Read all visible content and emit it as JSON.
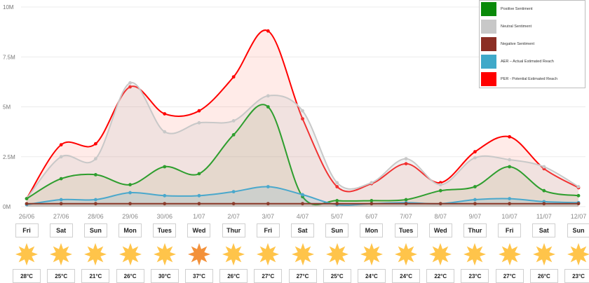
{
  "chart_data": {
    "type": "area",
    "categories": [
      "26/06",
      "27/06",
      "28/06",
      "29/06",
      "30/06",
      "1/07",
      "2/07",
      "3/07",
      "4/07",
      "5/07",
      "6/07",
      "7/07",
      "8/07",
      "9/07",
      "10/07",
      "11/07",
      "12/07"
    ],
    "y_ticks": [
      "0M",
      "2.5M",
      "5M",
      "7.5M",
      "10M"
    ],
    "ylim": [
      0,
      10
    ],
    "legend_position": "top-right",
    "series": [
      {
        "name": "Positive Sentiment",
        "color": "#2e9e2e",
        "values": [
          0.4,
          1.4,
          1.6,
          1.1,
          2.0,
          1.65,
          3.6,
          5.0,
          0.5,
          0.3,
          0.3,
          0.35,
          0.8,
          1.0,
          2.0,
          0.8,
          0.55
        ]
      },
      {
        "name": "Neutral Sentiment",
        "color": "#c8c8c8",
        "values": [
          0.4,
          2.5,
          2.4,
          6.2,
          3.75,
          4.2,
          4.3,
          5.55,
          4.8,
          1.2,
          1.2,
          2.4,
          1.1,
          2.45,
          2.35,
          2.0,
          1.0
        ]
      },
      {
        "name": "Negative Sentiment",
        "color": "#8b3a2a",
        "values": [
          0.15,
          0.15,
          0.15,
          0.15,
          0.15,
          0.15,
          0.15,
          0.15,
          0.15,
          0.15,
          0.15,
          0.15,
          0.15,
          0.15,
          0.15,
          0.15,
          0.15
        ]
      },
      {
        "name": "AER – Actual Estimated Reach",
        "color": "#4aa8cc",
        "values": [
          0.1,
          0.35,
          0.35,
          0.7,
          0.55,
          0.55,
          0.75,
          1.0,
          0.6,
          0.1,
          0.15,
          0.2,
          0.15,
          0.35,
          0.4,
          0.25,
          0.2
        ]
      },
      {
        "name": "PER - Potential Estimated Reach",
        "color": "#ff0000",
        "values": [
          0.4,
          3.1,
          3.15,
          6.0,
          4.65,
          4.8,
          6.5,
          8.8,
          4.4,
          1.0,
          1.15,
          2.15,
          1.2,
          2.75,
          3.5,
          1.9,
          0.95
        ]
      }
    ]
  },
  "forecast": {
    "days": [
      "Fri",
      "Sat",
      "Sun",
      "Mon",
      "Tues",
      "Wed",
      "Thur",
      "Fri",
      "Sat",
      "Sun",
      "Mon",
      "Tues",
      "Wed",
      "Thur",
      "Fri",
      "Sat",
      "Sun"
    ],
    "temps": [
      "28°C",
      "25°C",
      "21°C",
      "26°C",
      "30°C",
      "37°C",
      "26°C",
      "27°C",
      "27°C",
      "25°C",
      "24°C",
      "24°C",
      "22°C",
      "23°C",
      "27°C",
      "26°C",
      "23°C"
    ],
    "sun_colors": [
      "#ffc44a",
      "#ffc44a",
      "#ffc44a",
      "#ffc44a",
      "#ffc44a",
      "#f3913a",
      "#ffc44a",
      "#ffc44a",
      "#ffc44a",
      "#ffc44a",
      "#ffc44a",
      "#ffc44a",
      "#ffc44a",
      "#ffc44a",
      "#ffc44a",
      "#ffc44a",
      "#ffc44a"
    ]
  },
  "legend": {
    "items": [
      {
        "label": "Positive Sentiment",
        "color": "#0a8a0a"
      },
      {
        "label": "Neutral Sentiment",
        "color": "#c8c8c8"
      },
      {
        "label": "Negative Sentiment",
        "color": "#8b2e24"
      },
      {
        "label": "AER – Actual Estimated Reach",
        "color": "#3fa9c9"
      },
      {
        "label": "PER - Potential Estimated Reach",
        "color": "#ff0000"
      }
    ]
  }
}
